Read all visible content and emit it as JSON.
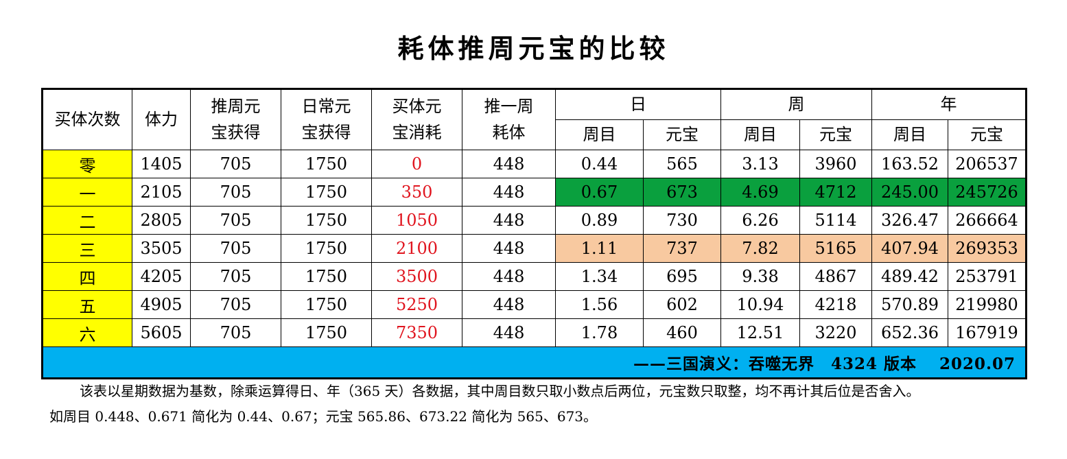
{
  "title": "耗体推周元宝的比较",
  "headers": {
    "buy_count": "买体次数",
    "stamina": "体力",
    "weekly_push_gain": "推周元宝获得",
    "daily_gain": "日常元宝获得",
    "buy_cost": "买体元宝消耗",
    "stamina_per_week": "推一周耗体",
    "group_day": "日",
    "group_week": "周",
    "group_year": "年",
    "sub_rounds": "周目",
    "sub_ingots": "元宝"
  },
  "rows": [
    {
      "n": "零",
      "stamina": "1405",
      "push": "705",
      "daily": "1750",
      "cost": "0",
      "per_week": "448",
      "d_r": "0.44",
      "d_y": "565",
      "w_r": "3.13",
      "w_y": "3960",
      "y_r": "163.52",
      "y_y": "206537",
      "highlight": ""
    },
    {
      "n": "一",
      "stamina": "2105",
      "push": "705",
      "daily": "1750",
      "cost": "350",
      "per_week": "448",
      "d_r": "0.67",
      "d_y": "673",
      "w_r": "4.69",
      "w_y": "4712",
      "y_r": "245.00",
      "y_y": "245726",
      "highlight": "green"
    },
    {
      "n": "二",
      "stamina": "2805",
      "push": "705",
      "daily": "1750",
      "cost": "1050",
      "per_week": "448",
      "d_r": "0.89",
      "d_y": "730",
      "w_r": "6.26",
      "w_y": "5114",
      "y_r": "326.47",
      "y_y": "266664",
      "highlight": ""
    },
    {
      "n": "三",
      "stamina": "3505",
      "push": "705",
      "daily": "1750",
      "cost": "2100",
      "per_week": "448",
      "d_r": "1.11",
      "d_y": "737",
      "w_r": "7.82",
      "w_y": "5165",
      "y_r": "407.94",
      "y_y": "269353",
      "highlight": "orange"
    },
    {
      "n": "四",
      "stamina": "4205",
      "push": "705",
      "daily": "1750",
      "cost": "3500",
      "per_week": "448",
      "d_r": "1.34",
      "d_y": "695",
      "w_r": "9.38",
      "w_y": "4867",
      "y_r": "489.42",
      "y_y": "253791",
      "highlight": ""
    },
    {
      "n": "五",
      "stamina": "4905",
      "push": "705",
      "daily": "1750",
      "cost": "5250",
      "per_week": "448",
      "d_r": "1.56",
      "d_y": "602",
      "w_r": "10.94",
      "w_y": "4218",
      "y_r": "570.89",
      "y_y": "219980",
      "highlight": ""
    },
    {
      "n": "六",
      "stamina": "5605",
      "push": "705",
      "daily": "1750",
      "cost": "7350",
      "per_week": "448",
      "d_r": "1.78",
      "d_y": "460",
      "w_r": "12.51",
      "w_y": "3220",
      "y_r": "652.36",
      "y_y": "167919",
      "highlight": ""
    }
  ],
  "footer": "——三国演义：吞噬无界　4324 版本　 2020.07",
  "note_line1": "该表以星期数据为基数，除乘运算得日、年（365 天）各数据，其中周目数只取小数点后两位，元宝数只取整，均不再计其后位是否舍入。",
  "note_line2": "如周目 0.448、0.671 简化为 0.44、0.67；元宝 565.86、673.22 简化为 565、673。",
  "colors": {
    "yellow": "#ffff00",
    "red": "#e0141e",
    "green": "#0aa03e",
    "orange": "#f8c9a0",
    "footer_blue": "#00b0f0"
  }
}
